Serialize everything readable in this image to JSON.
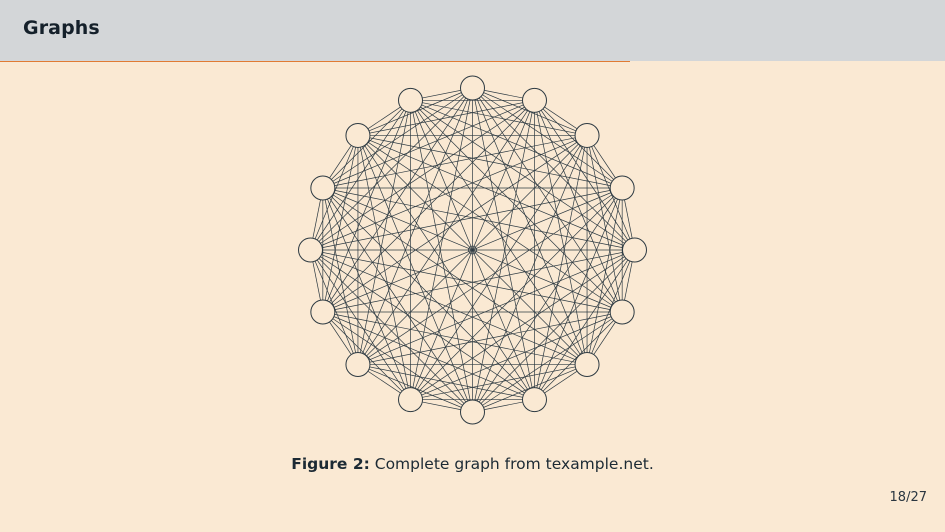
{
  "slide": {
    "title": "Graphs",
    "caption_label": "Figure 2:",
    "caption_text": "Complete graph from texample.net.",
    "page_number": "18/27"
  },
  "graph": {
    "type": "complete-graph",
    "node_count": 16,
    "edge_color": "#2d3a42",
    "node_fill": "#fae9d3"
  },
  "colors": {
    "background": "#fae9d3",
    "header": "#d3d6d8",
    "accent_rule": "#e07b33",
    "text": "#14202a"
  }
}
